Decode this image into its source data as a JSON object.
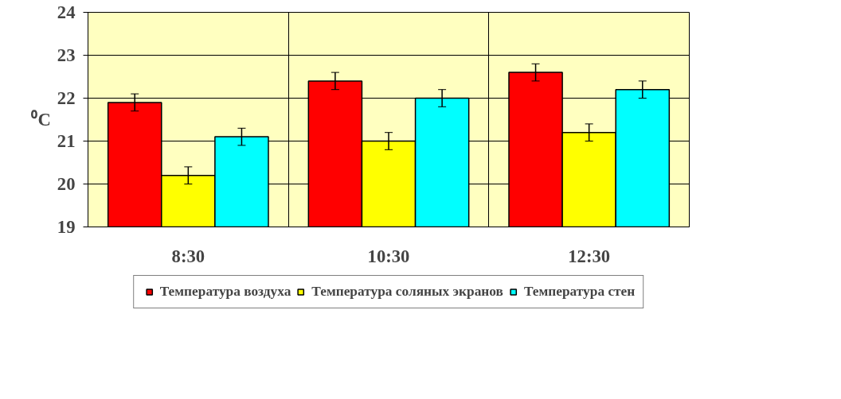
{
  "chart_data": {
    "type": "bar",
    "ylabel": "⁰C",
    "categories": [
      "8:30",
      "10:30",
      "12:30"
    ],
    "series": [
      {
        "name": "Температура воздуха",
        "color": "#ff0000",
        "values": [
          21.9,
          22.4,
          22.6
        ],
        "errors": [
          0.2,
          0.2,
          0.2
        ]
      },
      {
        "name": "Температура соляных экранов",
        "color": "#ffff00",
        "values": [
          20.2,
          21.0,
          21.2
        ],
        "errors": [
          0.2,
          0.2,
          0.2
        ]
      },
      {
        "name": "Температура стен",
        "color": "#00ffff",
        "values": [
          21.1,
          22.0,
          22.2
        ],
        "errors": [
          0.2,
          0.2,
          0.2
        ]
      }
    ],
    "ylim": [
      19,
      24
    ],
    "yticks": [
      19,
      20,
      21,
      22,
      23,
      24
    ],
    "grid": true,
    "legend": "bottom"
  }
}
